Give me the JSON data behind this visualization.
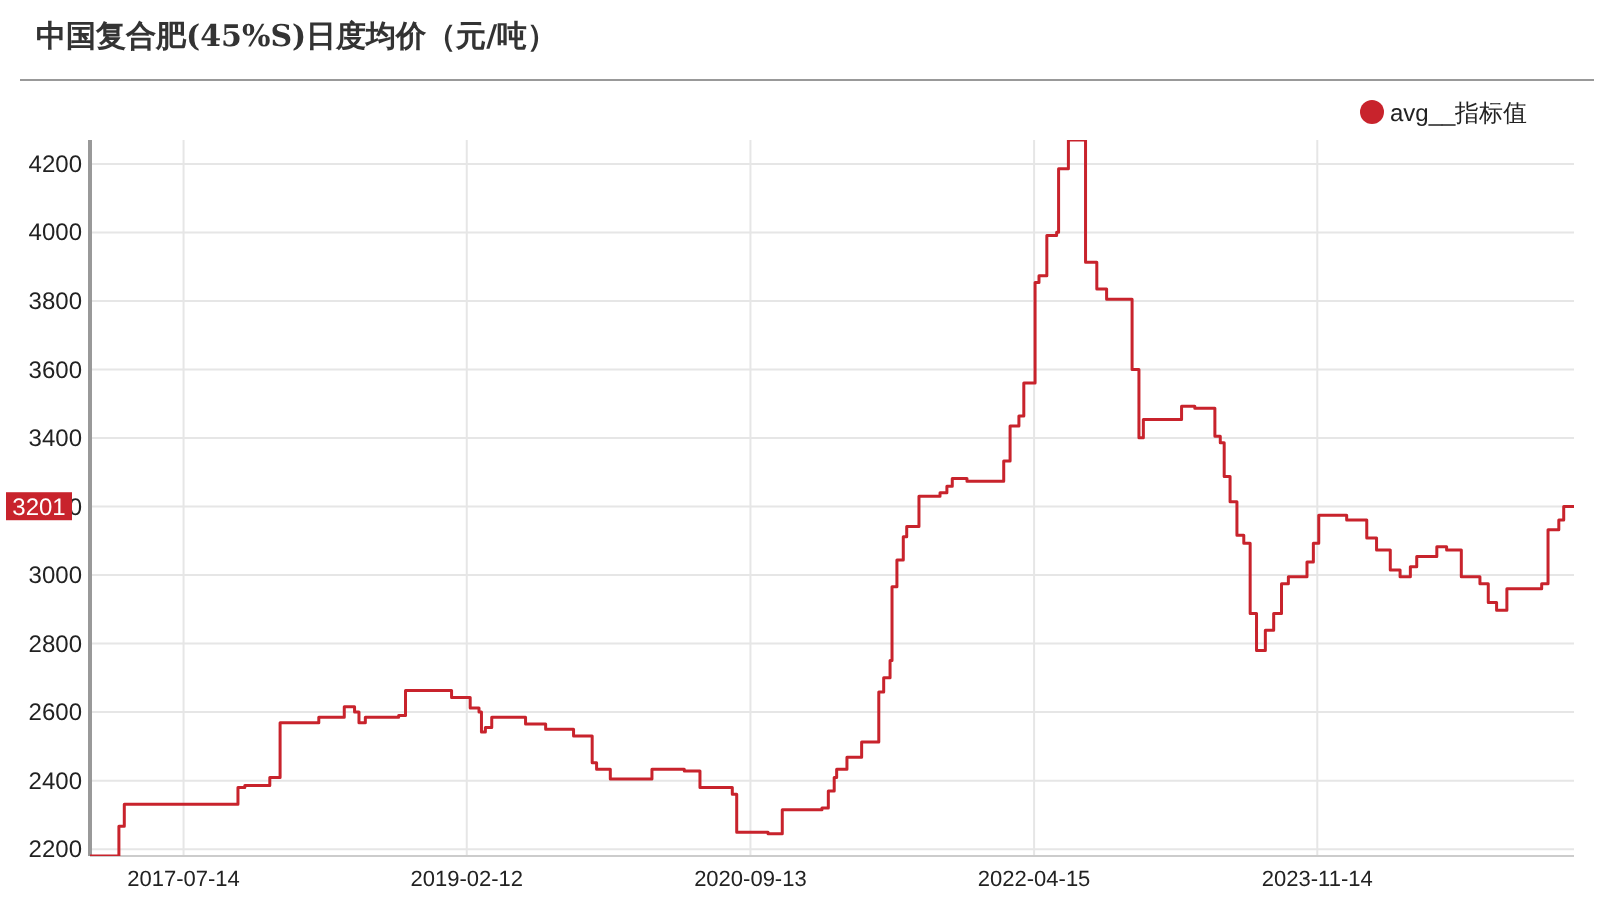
{
  "chart_data": {
    "type": "step",
    "title": "中国复合肥(45%S)日度均价（元/吨）",
    "x": [
      "2017-01-04",
      "2017-03-04",
      "2017-03-15",
      "2017-11-02",
      "2017-11-16",
      "2018-01-06",
      "2018-01-27",
      "2018-04-16",
      "2018-06-07",
      "2018-06-28",
      "2018-07-07",
      "2018-07-20",
      "2018-09-26",
      "2018-10-10",
      "2019-01-12",
      "2019-02-19",
      "2019-03-09",
      "2019-03-14",
      "2019-03-22",
      "2019-04-04",
      "2019-06-12",
      "2019-07-23",
      "2019-09-18",
      "2019-10-26",
      "2019-11-04",
      "2019-12-02",
      "2020-02-25",
      "2020-05-01",
      "2020-06-02",
      "2020-08-07",
      "2020-08-16",
      "2020-10-19",
      "2020-11-17",
      "2021-02-06",
      "2021-02-19",
      "2021-03-03",
      "2021-03-08",
      "2021-03-29",
      "2021-04-28",
      "2021-06-02",
      "2021-06-12",
      "2021-06-25",
      "2021-06-29",
      "2021-07-09",
      "2021-07-22",
      "2021-07-29",
      "2021-08-23",
      "2021-10-05",
      "2021-10-19",
      "2021-10-30",
      "2021-11-29",
      "2022-02-12",
      "2022-02-25",
      "2022-03-15",
      "2022-03-25",
      "2022-04-17",
      "2022-04-25",
      "2022-05-11",
      "2022-05-31",
      "2022-06-04",
      "2022-06-24",
      "2022-07-29",
      "2022-08-21",
      "2022-09-10",
      "2022-11-01",
      "2022-11-15",
      "2022-11-24",
      "2023-02-10",
      "2023-03-09",
      "2023-04-19",
      "2023-04-30",
      "2023-05-08",
      "2023-05-20",
      "2023-06-03",
      "2023-06-17",
      "2023-06-30",
      "2023-07-13",
      "2023-07-31",
      "2023-08-17",
      "2023-09-02",
      "2023-09-16",
      "2023-10-24",
      "2023-11-06",
      "2023-11-17",
      "2024-01-13",
      "2024-02-23",
      "2024-03-14",
      "2024-04-11",
      "2024-05-01",
      "2024-05-22",
      "2024-06-04",
      "2024-07-15",
      "2024-08-04",
      "2024-09-03",
      "2024-10-11",
      "2024-10-28",
      "2024-11-14",
      "2024-12-05",
      "2025-02-14",
      "2025-02-27",
      "2025-03-21",
      "2025-03-31",
      "2025-04-21"
    ],
    "series": [
      {
        "name": "avg__指标值",
        "color": "#c8232c",
        "values": [
          2180,
          2267,
          2331,
          2380,
          2386,
          2409,
          2569,
          2585,
          2616,
          2600,
          2569,
          2585,
          2590,
          2663,
          2643,
          2612,
          2600,
          2542,
          2555,
          2585,
          2565,
          2550,
          2530,
          2452,
          2433,
          2405,
          2433,
          2428,
          2380,
          2360,
          2249,
          2245,
          2315,
          2320,
          2370,
          2409,
          2433,
          2468,
          2513,
          2659,
          2700,
          2751,
          2966,
          3044,
          3112,
          3142,
          3230,
          3240,
          3259,
          3282,
          3274,
          3333,
          3435,
          3464,
          3561,
          3854,
          3874,
          3991,
          4001,
          4186,
          4270,
          3913,
          3835,
          3805,
          3600,
          3401,
          3454,
          3493,
          3487,
          3405,
          3386,
          3288,
          3214,
          3116,
          3093,
          2888,
          2780,
          2839,
          2888,
          2975,
          2995,
          3038,
          3093,
          3175,
          3161,
          3108,
          3073,
          3015,
          2995,
          3024,
          3054,
          3083,
          3073,
          2995,
          2975,
          2920,
          2897,
          2960,
          2975,
          3132,
          3161,
          3200,
          3201
        ]
      }
    ],
    "xlim": [
      "2017-01-04",
      "2025-04-21"
    ],
    "xticks": [
      "2017-07-14",
      "2019-02-12",
      "2020-09-13",
      "2022-04-15",
      "2023-11-14"
    ],
    "ylim": [
      2180,
      4270
    ],
    "yticks": [
      2200,
      2400,
      2600,
      2800,
      3000,
      3200,
      3400,
      3600,
      3800,
      4000,
      4200
    ],
    "annotations": [
      "3201"
    ],
    "grid": true,
    "legend": "top right",
    "marker": "none",
    "line_style": "solid"
  }
}
